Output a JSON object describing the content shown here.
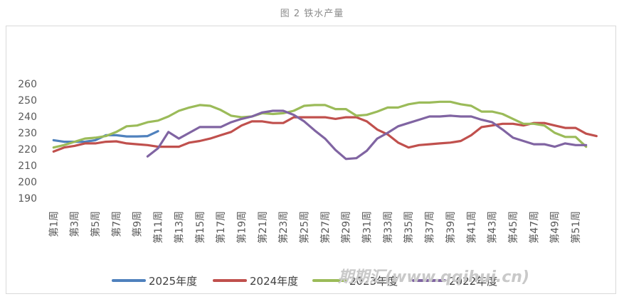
{
  "caption": "图 2 铁水产量",
  "watermark": "期期汇(www.qqihui.cn)",
  "chart_data": {
    "type": "line",
    "title": "",
    "xlabel": "",
    "ylabel": "",
    "ylim": [
      190,
      260
    ],
    "yticks": [
      190,
      200,
      210,
      220,
      230,
      240,
      250,
      260
    ],
    "grid": false,
    "legend_position": "bottom",
    "x_tick_labels": [
      "第1周",
      "第3周",
      "第5周",
      "第7周",
      "第9周",
      "第11周",
      "第13周",
      "第15周",
      "第17周",
      "第19周",
      "第21周",
      "第23周",
      "第25周",
      "第27周",
      "第29周",
      "第31周",
      "第33周",
      "第35周",
      "第37周",
      "第39周",
      "第41周",
      "第43周",
      "第45周",
      "第47周",
      "第49周",
      "第51周"
    ],
    "series": [
      {
        "name": "2025年度",
        "color": "#4f81bd",
        "start_week": 1,
        "values": [
          225.5,
          224.5,
          224.5,
          224.5,
          225.5,
          228.5,
          228.5,
          227.8,
          227.8,
          228.0,
          231.0
        ]
      },
      {
        "name": "2024年度",
        "color": "#c0504d",
        "start_week": 1,
        "values": [
          218.5,
          221.0,
          222.0,
          223.5,
          223.5,
          224.5,
          224.8,
          223.5,
          223.0,
          222.5,
          221.5,
          221.5,
          221.5,
          224.0,
          225.0,
          226.5,
          228.5,
          230.5,
          234.5,
          237.0,
          237.0,
          236.0,
          236.0,
          239.5,
          239.5,
          239.5,
          239.5,
          238.5,
          239.5,
          239.5,
          237.0,
          232.0,
          229.0,
          224.0,
          221.0,
          222.5,
          223.0,
          223.5,
          224.0,
          225.0,
          228.5,
          233.5,
          234.5,
          235.5,
          235.5,
          234.5,
          236.0,
          236.0,
          234.5,
          233.0,
          233.0,
          229.5,
          228.0
        ]
      },
      {
        "name": "2023年度",
        "color": "#9bbb59",
        "start_week": 1,
        "values": [
          221.0,
          222.5,
          224.5,
          226.5,
          227.0,
          228.0,
          230.5,
          234.0,
          234.5,
          236.5,
          237.5,
          240.0,
          243.5,
          245.5,
          247.0,
          246.5,
          244.0,
          240.5,
          239.5,
          240.0,
          242.0,
          241.5,
          242.0,
          243.5,
          246.5,
          247.0,
          247.0,
          244.5,
          244.5,
          240.5,
          241.0,
          243.0,
          245.5,
          245.5,
          247.5,
          248.5,
          248.5,
          249.0,
          249.0,
          247.5,
          246.5,
          243.0,
          243.0,
          241.5,
          238.5,
          235.5,
          235.5,
          234.5,
          230.0,
          227.5,
          227.5,
          221.5
        ]
      },
      {
        "name": "2022年度",
        "color": "#8064a2",
        "start_week": 10,
        "values": [
          215.5,
          220.5,
          230.5,
          226.5,
          230.0,
          233.5,
          233.5,
          233.5,
          236.5,
          238.5,
          240.0,
          242.5,
          243.5,
          243.5,
          241.0,
          237.0,
          231.5,
          226.5,
          219.5,
          214.0,
          214.5,
          219.0,
          226.5,
          230.0,
          234.0,
          236.0,
          238.0,
          240.0,
          240.0,
          240.5,
          240.0,
          240.0,
          238.0,
          236.5,
          232.0,
          227.0,
          225.0,
          223.0,
          223.0,
          221.5,
          223.5,
          222.5,
          222.5
        ]
      }
    ]
  }
}
